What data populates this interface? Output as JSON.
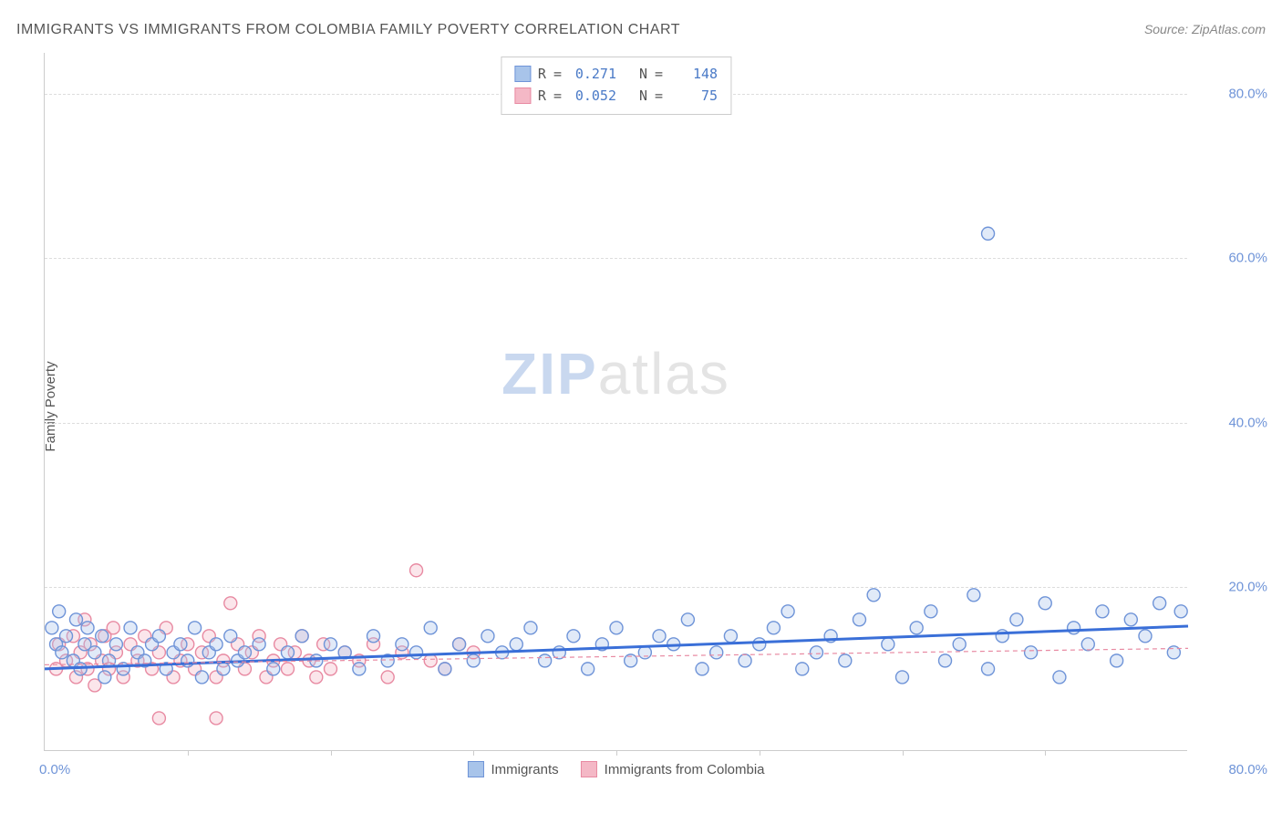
{
  "title": "IMMIGRANTS VS IMMIGRANTS FROM COLOMBIA FAMILY POVERTY CORRELATION CHART",
  "source": "Source: ZipAtlas.com",
  "ylabel": "Family Poverty",
  "watermark": {
    "part1": "ZIP",
    "part2": "atlas"
  },
  "chart": {
    "type": "scatter",
    "xlim": [
      0,
      80
    ],
    "ylim": [
      0,
      85
    ],
    "x_axis_labels": {
      "left": "0.0%",
      "right": "80.0%"
    },
    "y_ticks": [
      {
        "value": 20,
        "label": "20.0%"
      },
      {
        "value": 40,
        "label": "40.0%"
      },
      {
        "value": 60,
        "label": "60.0%"
      },
      {
        "value": 80,
        "label": "80.0%"
      }
    ],
    "x_minor_tick_step": 10,
    "grid_color": "#dddddd",
    "axis_color": "#cccccc",
    "background_color": "#ffffff",
    "tick_label_color": "#6f94d8",
    "label_color": "#555555",
    "title_color": "#555555",
    "title_fontsize": 16,
    "label_fontsize": 15,
    "tick_fontsize": 15,
    "marker_radius": 7,
    "marker_stroke_width": 1.4,
    "marker_fill_opacity": 0.35,
    "series": [
      {
        "name": "Immigrants",
        "color_fill": "#a8c4ea",
        "color_stroke": "#6f94d8",
        "R": "0.271",
        "N": "148",
        "trend": {
          "x1": 0,
          "y1": 10.0,
          "x2": 80,
          "y2": 15.2,
          "stroke": "#3a6fd8",
          "width": 3,
          "dash": "none"
        },
        "points": [
          [
            0.5,
            15
          ],
          [
            0.8,
            13
          ],
          [
            1,
            17
          ],
          [
            1.2,
            12
          ],
          [
            1.5,
            14
          ],
          [
            2,
            11
          ],
          [
            2.2,
            16
          ],
          [
            2.5,
            10
          ],
          [
            2.8,
            13
          ],
          [
            3,
            15
          ],
          [
            3.5,
            12
          ],
          [
            4,
            14
          ],
          [
            4.2,
            9
          ],
          [
            4.5,
            11
          ],
          [
            5,
            13
          ],
          [
            5.5,
            10
          ],
          [
            6,
            15
          ],
          [
            6.5,
            12
          ],
          [
            7,
            11
          ],
          [
            7.5,
            13
          ],
          [
            8,
            14
          ],
          [
            8.5,
            10
          ],
          [
            9,
            12
          ],
          [
            9.5,
            13
          ],
          [
            10,
            11
          ],
          [
            10.5,
            15
          ],
          [
            11,
            9
          ],
          [
            11.5,
            12
          ],
          [
            12,
            13
          ],
          [
            12.5,
            10
          ],
          [
            13,
            14
          ],
          [
            13.5,
            11
          ],
          [
            14,
            12
          ],
          [
            15,
            13
          ],
          [
            16,
            10
          ],
          [
            17,
            12
          ],
          [
            18,
            14
          ],
          [
            19,
            11
          ],
          [
            20,
            13
          ],
          [
            21,
            12
          ],
          [
            22,
            10
          ],
          [
            23,
            14
          ],
          [
            24,
            11
          ],
          [
            25,
            13
          ],
          [
            26,
            12
          ],
          [
            27,
            15
          ],
          [
            28,
            10
          ],
          [
            29,
            13
          ],
          [
            30,
            11
          ],
          [
            31,
            14
          ],
          [
            32,
            12
          ],
          [
            33,
            13
          ],
          [
            34,
            15
          ],
          [
            35,
            11
          ],
          [
            36,
            12
          ],
          [
            37,
            14
          ],
          [
            38,
            10
          ],
          [
            39,
            13
          ],
          [
            40,
            15
          ],
          [
            41,
            11
          ],
          [
            42,
            12
          ],
          [
            43,
            14
          ],
          [
            44,
            13
          ],
          [
            45,
            16
          ],
          [
            46,
            10
          ],
          [
            47,
            12
          ],
          [
            48,
            14
          ],
          [
            49,
            11
          ],
          [
            50,
            13
          ],
          [
            51,
            15
          ],
          [
            52,
            17
          ],
          [
            53,
            10
          ],
          [
            54,
            12
          ],
          [
            55,
            14
          ],
          [
            56,
            11
          ],
          [
            57,
            16
          ],
          [
            58,
            19
          ],
          [
            59,
            13
          ],
          [
            60,
            9
          ],
          [
            61,
            15
          ],
          [
            62,
            17
          ],
          [
            63,
            11
          ],
          [
            64,
            13
          ],
          [
            65,
            19
          ],
          [
            66,
            10
          ],
          [
            67,
            14
          ],
          [
            68,
            16
          ],
          [
            69,
            12
          ],
          [
            70,
            18
          ],
          [
            71,
            9
          ],
          [
            72,
            15
          ],
          [
            73,
            13
          ],
          [
            74,
            17
          ],
          [
            75,
            11
          ],
          [
            76,
            16
          ],
          [
            77,
            14
          ],
          [
            78,
            18
          ],
          [
            79,
            12
          ],
          [
            79.5,
            17
          ],
          [
            66,
            63
          ]
        ]
      },
      {
        "name": "Immigrants from Colombia",
        "color_fill": "#f4b8c6",
        "color_stroke": "#e88aa2",
        "R": "0.052",
        "N": "75",
        "trend": {
          "x1": 0,
          "y1": 10.5,
          "x2": 80,
          "y2": 12.5,
          "stroke": "#e88aa2",
          "width": 1.2,
          "dash": "5,4"
        },
        "points": [
          [
            0.8,
            10
          ],
          [
            1,
            13
          ],
          [
            1.5,
            11
          ],
          [
            2,
            14
          ],
          [
            2.2,
            9
          ],
          [
            2.5,
            12
          ],
          [
            2.8,
            16
          ],
          [
            3,
            10
          ],
          [
            3.2,
            13
          ],
          [
            3.5,
            8
          ],
          [
            4,
            11
          ],
          [
            4.2,
            14
          ],
          [
            4.5,
            10
          ],
          [
            4.8,
            15
          ],
          [
            5,
            12
          ],
          [
            5.5,
            9
          ],
          [
            6,
            13
          ],
          [
            6.5,
            11
          ],
          [
            7,
            14
          ],
          [
            7.5,
            10
          ],
          [
            8,
            12
          ],
          [
            8.5,
            15
          ],
          [
            9,
            9
          ],
          [
            9.5,
            11
          ],
          [
            10,
            13
          ],
          [
            10.5,
            10
          ],
          [
            11,
            12
          ],
          [
            11.5,
            14
          ],
          [
            12,
            9
          ],
          [
            12.5,
            11
          ],
          [
            13,
            18
          ],
          [
            13.5,
            13
          ],
          [
            14,
            10
          ],
          [
            14.5,
            12
          ],
          [
            15,
            14
          ],
          [
            15.5,
            9
          ],
          [
            16,
            11
          ],
          [
            16.5,
            13
          ],
          [
            17,
            10
          ],
          [
            17.5,
            12
          ],
          [
            18,
            14
          ],
          [
            18.5,
            11
          ],
          [
            19,
            9
          ],
          [
            19.5,
            13
          ],
          [
            20,
            10
          ],
          [
            21,
            12
          ],
          [
            22,
            11
          ],
          [
            23,
            13
          ],
          [
            24,
            9
          ],
          [
            25,
            12
          ],
          [
            26,
            22
          ],
          [
            27,
            11
          ],
          [
            28,
            10
          ],
          [
            29,
            13
          ],
          [
            30,
            12
          ],
          [
            8,
            4
          ],
          [
            12,
            4
          ]
        ]
      }
    ],
    "stats_legend_labels": {
      "R": "R",
      "eq": "=",
      "N": "N"
    },
    "bottom_legend_labels": [
      "Immigrants",
      "Immigrants from Colombia"
    ]
  }
}
